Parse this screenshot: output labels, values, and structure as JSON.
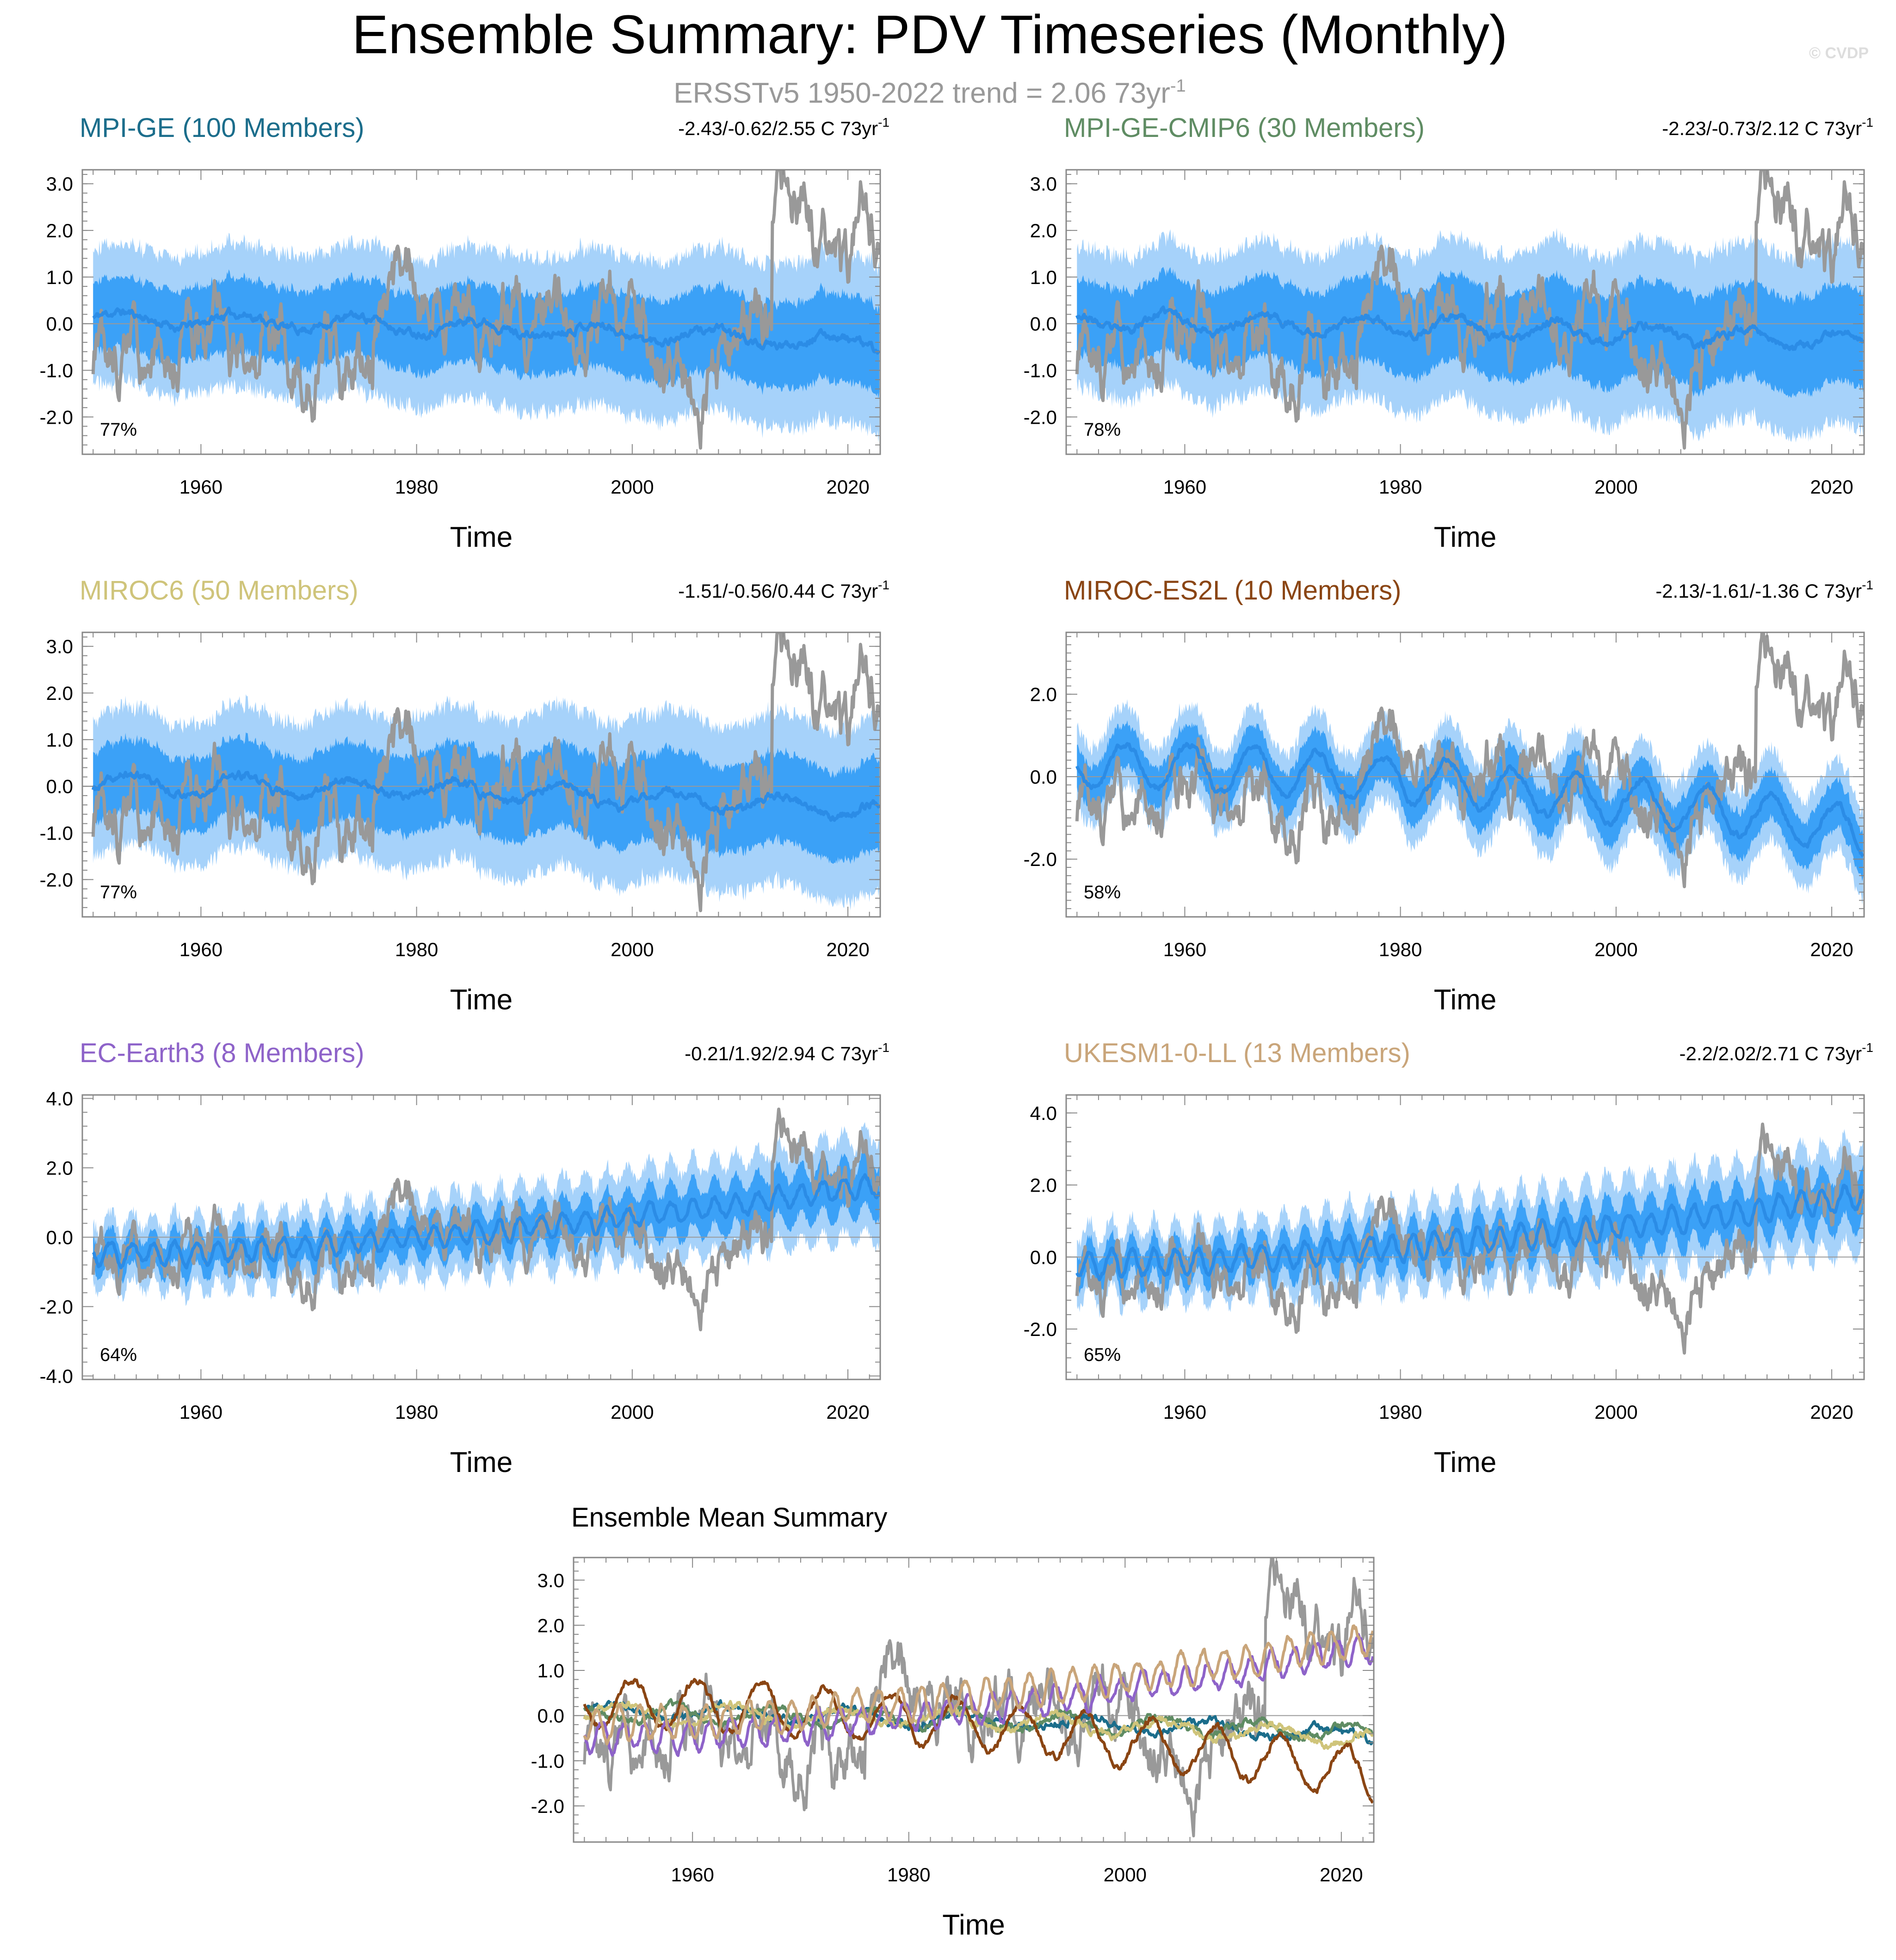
{
  "figure": {
    "title": "Ensemble Summary: PDV Timeseries (Monthly)",
    "subtitle_main": "ERSSTv5 1950-2022 trend = 2.06 73yr",
    "subtitle_sup": "-1",
    "copyright": "© CVDP"
  },
  "colors": {
    "observations": "#999999",
    "spread_outer": "#a6d2fa",
    "spread_inner": "#3ba1f7",
    "ensemble_mean": "#2b8ce6",
    "zero_line": "#999999",
    "axis": "#888888"
  },
  "chart_data": [
    {
      "type": "area",
      "title": "MPI-GE (100 Members)",
      "title_color": "#1b6d8b",
      "trend_text": "-2.43/-0.62/2.55 C 73yr",
      "trend_sup": "-1",
      "percent_text": "77%",
      "xlabel": "Time",
      "xlim": [
        1949,
        2023
      ],
      "xticks": [
        1960,
        1980,
        2000,
        2020
      ],
      "ylim": [
        -2.8,
        3.3
      ],
      "yticks": [
        3.0,
        2.0,
        1.0,
        0.0,
        -1.0,
        -2.0
      ],
      "ytick_labels": [
        "3.0",
        "2.0",
        "1.0",
        "0.0",
        "-1.0",
        "-2.0"
      ],
      "mean_profile": {
        "start": 0.1,
        "end": -0.45,
        "osc_amp": 0.15,
        "osc_period": 11,
        "seed": 11
      },
      "spread": {
        "inner": 0.75,
        "outer": 1.45,
        "widen": 0.25
      },
      "series": [
        {
          "name": "ERSSTv5",
          "color": "#999999"
        }
      ]
    },
    {
      "type": "area",
      "title": "MPI-GE-CMIP6 (30 Members)",
      "title_color": "#5f8c63",
      "trend_text": "-2.23/-0.73/2.12 C 73yr",
      "trend_sup": "-1",
      "percent_text": "78%",
      "xlabel": "Time",
      "xlim": [
        1949,
        2023
      ],
      "xticks": [
        1960,
        1980,
        2000,
        2020
      ],
      "ylim": [
        -2.8,
        3.3
      ],
      "yticks": [
        3.0,
        2.0,
        1.0,
        0.0,
        -1.0,
        -2.0
      ],
      "ytick_labels": [
        "3.0",
        "2.0",
        "1.0",
        "0.0",
        "-1.0",
        "-2.0"
      ],
      "mean_profile": {
        "start": 0.05,
        "end": -0.4,
        "osc_amp": 0.2,
        "osc_period": 9,
        "seed": 23
      },
      "spread": {
        "inner": 0.8,
        "outer": 1.5,
        "widen": 0.3
      },
      "series": [
        {
          "name": "ERSSTv5",
          "color": "#999999"
        }
      ]
    },
    {
      "type": "area",
      "title": "MIROC6 (50 Members)",
      "title_color": "#cfc47a",
      "trend_text": "-1.51/-0.56/0.44 C 73yr",
      "trend_sup": "-1",
      "percent_text": "77%",
      "xlabel": "Time",
      "xlim": [
        1949,
        2023
      ],
      "xticks": [
        1960,
        1980,
        2000,
        2020
      ],
      "ylim": [
        -2.8,
        3.3
      ],
      "yticks": [
        3.0,
        2.0,
        1.0,
        0.0,
        -1.0,
        -2.0
      ],
      "ytick_labels": [
        "3.0",
        "2.0",
        "1.0",
        "0.0",
        "-1.0",
        "-2.0"
      ],
      "mean_profile": {
        "start": 0.05,
        "end": -0.5,
        "osc_amp": 0.2,
        "osc_period": 10,
        "seed": 37
      },
      "spread": {
        "inner": 0.75,
        "outer": 1.45,
        "widen": 0.3
      },
      "series": [
        {
          "name": "ERSSTv5",
          "color": "#999999"
        }
      ]
    },
    {
      "type": "area",
      "title": "MIROC-ES2L (10 Members)",
      "title_color": "#8a4513",
      "trend_text": "-2.13/-1.61/-1.36 C 73yr",
      "trend_sup": "-1",
      "percent_text": "58%",
      "xlabel": "Time",
      "xlim": [
        1949,
        2023
      ],
      "xticks": [
        1960,
        1980,
        2000,
        2020
      ],
      "ylim": [
        -3.4,
        3.5
      ],
      "yticks": [
        2.0,
        0.0,
        -2.0
      ],
      "ytick_labels": [
        "2.0",
        "0.0",
        "-2.0"
      ],
      "mean_profile": {
        "start": 0.3,
        "end": -1.3,
        "osc_amp": 0.55,
        "osc_period": 6,
        "seed": 41
      },
      "spread": {
        "inner": 0.5,
        "outer": 0.95,
        "widen": 0.15
      },
      "series": [
        {
          "name": "ERSSTv5",
          "color": "#999999"
        }
      ]
    },
    {
      "type": "area",
      "title": "EC-Earth3 (8 Members)",
      "title_color": "#8e63c9",
      "trend_text": "-0.21/1.92/2.94 C 73yr",
      "trend_sup": "-1",
      "percent_text": "64%",
      "xlabel": "Time",
      "xlim": [
        1949,
        2023
      ],
      "xticks": [
        1960,
        1980,
        2000,
        2020
      ],
      "ylim": [
        -4.1,
        4.1
      ],
      "yticks": [
        4.0,
        2.0,
        0.0,
        -2.0,
        -4.0
      ],
      "ytick_labels": [
        "4.0",
        "2.0",
        "0.0",
        "-2.0",
        "-4.0"
      ],
      "mean_profile": {
        "start": -0.5,
        "end": 1.5,
        "osc_amp": 0.3,
        "osc_period": 2,
        "seed": 53
      },
      "spread": {
        "inner": 0.45,
        "outer": 0.9,
        "widen": 0.6
      },
      "series": [
        {
          "name": "ERSSTv5",
          "color": "#999999"
        }
      ]
    },
    {
      "type": "area",
      "title": "UKESM1-0-LL (13 Members)",
      "title_color": "#c9a57a",
      "trend_text": "-2.2/2.02/2.71 C 73yr",
      "trend_sup": "-1",
      "percent_text": "65%",
      "xlabel": "Time",
      "xlim": [
        1949,
        2023
      ],
      "xticks": [
        1960,
        1980,
        2000,
        2020
      ],
      "ylim": [
        -3.4,
        4.5
      ],
      "yticks": [
        4.0,
        2.0,
        0.0,
        -2.0
      ],
      "ytick_labels": [
        "4.0",
        "2.0",
        "0.0",
        "-2.0"
      ],
      "mean_profile": {
        "start": -0.2,
        "end": 1.7,
        "osc_amp": 0.35,
        "osc_period": 2,
        "seed": 67
      },
      "spread": {
        "inner": 0.45,
        "outer": 0.9,
        "widen": 0.6
      },
      "series": [
        {
          "name": "ERSSTv5",
          "color": "#999999"
        }
      ]
    },
    {
      "type": "line",
      "title": "Ensemble Mean Summary",
      "xlabel": "Time",
      "xlim": [
        1949,
        2023
      ],
      "xticks": [
        1960,
        1980,
        2000,
        2020
      ],
      "ylim": [
        -2.8,
        3.5
      ],
      "yticks": [
        3.0,
        2.0,
        1.0,
        0.0,
        -1.0,
        -2.0
      ],
      "ytick_labels": [
        "3.0",
        "2.0",
        "1.0",
        "0.0",
        "-1.0",
        "-2.0"
      ],
      "series": [
        {
          "name": "ERSSTv5",
          "color": "#999999"
        },
        {
          "name": "MPI-GE",
          "color": "#1b6d8b",
          "start": 0.1,
          "end": -0.45,
          "osc_amp": 0.15,
          "osc_period": 11,
          "seed": 11
        },
        {
          "name": "MPI-GE-CMIP6",
          "color": "#5f8c63",
          "start": 0.05,
          "end": -0.4,
          "osc_amp": 0.2,
          "osc_period": 9,
          "seed": 23
        },
        {
          "name": "MIROC6",
          "color": "#cfc47a",
          "start": 0.05,
          "end": -0.5,
          "osc_amp": 0.2,
          "osc_period": 10,
          "seed": 37
        },
        {
          "name": "MIROC-ES2L",
          "color": "#8a4513",
          "start": 0.3,
          "end": -1.3,
          "osc_amp": 0.55,
          "osc_period": 6,
          "seed": 41
        },
        {
          "name": "EC-Earth3",
          "color": "#8e63c9",
          "start": -0.5,
          "end": 1.5,
          "osc_amp": 0.3,
          "osc_period": 2,
          "seed": 53
        },
        {
          "name": "UKESM1-0-LL",
          "color": "#c9a57a",
          "start": -0.2,
          "end": 1.7,
          "osc_amp": 0.35,
          "osc_period": 2,
          "seed": 67
        }
      ]
    }
  ]
}
